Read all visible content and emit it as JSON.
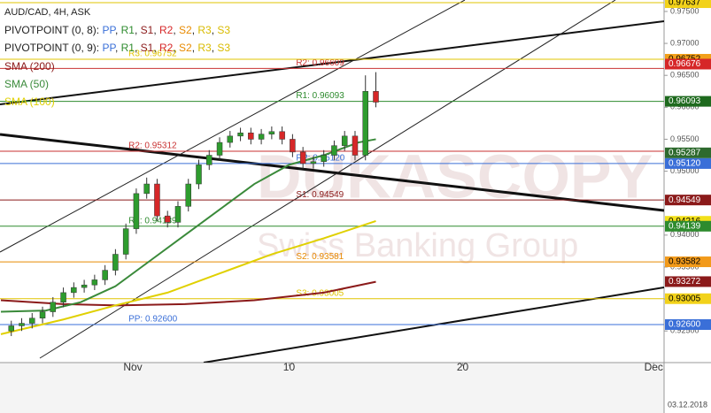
{
  "chart_data": {
    "type": "candlestick",
    "title": "AUD/CAD, 4H, ASK",
    "date_label": "03.12.2018",
    "watermark": {
      "brand": "DUKASCOPY",
      "tagline": "Swiss Banking Group"
    },
    "up_color": "#2e9c2e",
    "down_color": "#d62728",
    "x": [
      -6.0,
      -5.4,
      -4.8,
      -4.2,
      -3.6,
      -3.0,
      -2.4,
      -1.8,
      -1.2,
      -0.6,
      0.0,
      0.6,
      1.2,
      1.8,
      2.4,
      3.0,
      3.6,
      4.2,
      4.8,
      5.4,
      6.0,
      6.6,
      7.2,
      7.8,
      8.4,
      9.0,
      9.6,
      10.2,
      10.8,
      11.4,
      12.0,
      12.6,
      13.2,
      13.8,
      14.4,
      15.0
    ],
    "open": [
      0.925,
      0.9258,
      0.9262,
      0.927,
      0.928,
      0.9295,
      0.931,
      0.9318,
      0.9322,
      0.933,
      0.9345,
      0.937,
      0.941,
      0.9465,
      0.948,
      0.943,
      0.942,
      0.9445,
      0.948,
      0.951,
      0.9525,
      0.9545,
      0.9555,
      0.956,
      0.955,
      0.9558,
      0.9562,
      0.955,
      0.953,
      0.9512,
      0.9515,
      0.9525,
      0.954,
      0.9555,
      0.9525,
      0.9625
    ],
    "high": [
      0.9266,
      0.927,
      0.9278,
      0.9288,
      0.9303,
      0.9318,
      0.9326,
      0.933,
      0.9338,
      0.9353,
      0.9378,
      0.9418,
      0.9473,
      0.949,
      0.9488,
      0.9438,
      0.9453,
      0.9488,
      0.9518,
      0.9533,
      0.9553,
      0.9563,
      0.9568,
      0.9568,
      0.9566,
      0.957,
      0.957,
      0.9558,
      0.9538,
      0.9523,
      0.9533,
      0.9548,
      0.9563,
      0.9563,
      0.965,
      0.9655
    ],
    "low": [
      0.9242,
      0.925,
      0.9254,
      0.9262,
      0.9272,
      0.9287,
      0.9302,
      0.931,
      0.9314,
      0.9322,
      0.9337,
      0.9362,
      0.9402,
      0.9457,
      0.9422,
      0.9412,
      0.9412,
      0.9437,
      0.9472,
      0.9502,
      0.9517,
      0.9537,
      0.9547,
      0.9542,
      0.9542,
      0.955,
      0.9542,
      0.9522,
      0.9504,
      0.9504,
      0.9507,
      0.9517,
      0.9532,
      0.9517,
      0.9517,
      0.96
    ],
    "close": [
      0.9258,
      0.9262,
      0.927,
      0.928,
      0.9295,
      0.931,
      0.9318,
      0.9322,
      0.933,
      0.9345,
      0.937,
      0.941,
      0.9465,
      0.948,
      0.943,
      0.942,
      0.9445,
      0.948,
      0.951,
      0.9525,
      0.9545,
      0.9555,
      0.956,
      0.955,
      0.9558,
      0.9562,
      0.955,
      0.953,
      0.9512,
      0.9515,
      0.9525,
      0.954,
      0.9555,
      0.9525,
      0.9625,
      0.9608
    ],
    "xlim": [
      -6.65,
      31.6
    ],
    "ylim": [
      0.92005,
      0.97679
    ],
    "xticks": [
      {
        "value": 1,
        "label": "Nov"
      },
      10,
      20,
      {
        "value": 31,
        "label": "Dec"
      }
    ],
    "yticks": [
      {
        "value": 0.975,
        "label": "0.97500"
      },
      {
        "value": 0.97,
        "label": "0.97000"
      },
      {
        "value": 0.965,
        "label": "0.96500"
      },
      {
        "value": 0.96,
        "label": "0.96000"
      },
      {
        "value": 0.955,
        "label": "0.95500"
      },
      {
        "value": 0.95,
        "label": "0.95000"
      },
      {
        "value": 0.945,
        "label": "0.94500"
      },
      {
        "value": 0.94,
        "label": "0.94000"
      },
      {
        "value": 0.935,
        "label": "0.93500"
      },
      {
        "value": 0.93,
        "label": "0.93000"
      },
      {
        "value": 0.925,
        "label": "0.92500"
      }
    ],
    "pivots": [
      {
        "name": "PIVOTPOINT (0, 8):",
        "separator": ", ",
        "start": 10.4,
        "items": [
          {
            "name": "PP",
            "color": "#3a6fd8"
          },
          {
            "name": "R1",
            "color": "#2e8b2e"
          },
          {
            "name": "S1",
            "color": "#8b1a1a"
          },
          {
            "name": "R2",
            "color": "#d62728"
          },
          {
            "name": "S2",
            "color": "#e88a00"
          },
          {
            "name": "R3",
            "color": "#d9bb00"
          },
          {
            "name": "S3",
            "color": "#d9bb00"
          }
        ],
        "levels": [
          {
            "label": "R3: 0.97637",
            "value": 0.97637,
            "color": "#e0c400"
          },
          {
            "label": "R2: 0.96609",
            "value": 0.96609,
            "color": "#c83232"
          },
          {
            "label": "R1: 0.96093",
            "value": 0.96093,
            "color": "#2e8b2e"
          },
          {
            "label": "PP: 0.95120",
            "value": 0.9512,
            "color": "#3a6fd8"
          },
          {
            "label": "S1: 0.94549",
            "value": 0.94549,
            "color": "#8b1a1a"
          },
          {
            "label": "S2: 0.93581",
            "value": 0.93581,
            "color": "#e88a00"
          },
          {
            "label": "S3: 0.93005",
            "value": 0.93005,
            "color": "#e0c400"
          }
        ]
      },
      {
        "name": "PIVOTPOINT (0, 9):",
        "separator": ", ",
        "start": 0.75,
        "items": [
          {
            "name": "PP",
            "color": "#3a6fd8"
          },
          {
            "name": "R1",
            "color": "#2e8b2e"
          },
          {
            "name": "S1",
            "color": "#8b1a1a"
          },
          {
            "name": "R2",
            "color": "#d62728"
          },
          {
            "name": "S2",
            "color": "#e88a00"
          },
          {
            "name": "R3",
            "color": "#d9bb00"
          },
          {
            "name": "S3",
            "color": "#d9bb00"
          }
        ],
        "levels": [
          {
            "label": "R3: 0.96752",
            "value": 0.96752,
            "color": "#e0c400"
          },
          {
            "label": "R2: 0.95312",
            "value": 0.95312,
            "color": "#c83232"
          },
          {
            "label": "R1: 0.94139",
            "value": 0.94139,
            "color": "#2e8b2e"
          },
          {
            "label": "PP: 0.92600",
            "value": 0.926,
            "color": "#3a6fd8"
          }
        ]
      }
    ],
    "indicators": [
      {
        "name": "SMA (200)",
        "color": "#8b1a1a",
        "x": [
          -6.6,
          -3,
          0,
          4,
          8,
          12,
          15
        ],
        "values": [
          0.9298,
          0.9292,
          0.929,
          0.9292,
          0.9298,
          0.931,
          0.9327
        ]
      },
      {
        "name": "SMA (50)",
        "color": "#3a8a3a",
        "x": [
          -6.6,
          -4,
          -2,
          0,
          2,
          4,
          6,
          8,
          10,
          12,
          14,
          15
        ],
        "values": [
          0.928,
          0.9282,
          0.9295,
          0.932,
          0.936,
          0.94,
          0.944,
          0.948,
          0.951,
          0.9525,
          0.9545,
          0.955
        ]
      },
      {
        "name": "SMA (100)",
        "color": "#e0d000",
        "x": [
          -6.6,
          -3,
          0,
          3,
          6,
          9,
          12,
          15
        ],
        "values": [
          0.9245,
          0.9268,
          0.929,
          0.931,
          0.934,
          0.937,
          0.9395,
          0.9422
        ]
      }
    ],
    "price_tags": [
      {
        "label": "0.97637",
        "value": 0.97637,
        "color": "#f2d21a",
        "text_color": "#000000"
      },
      {
        "label": "0.96752",
        "value": 0.96752,
        "color": "#f2a01a",
        "text_color": "#000000"
      },
      {
        "label": "0.96676",
        "value": 0.96676,
        "color": "#d62728",
        "text_color": "#ffffff"
      },
      {
        "label": "0.96093",
        "value": 0.96093,
        "color": "#1e6a1e",
        "text_color": "#ffffff"
      },
      {
        "label": "0.95287",
        "value": 0.95287,
        "color": "#2e6a2e",
        "text_color": "#ffffff"
      },
      {
        "label": "0.95120",
        "value": 0.9512,
        "color": "#3a6fd8",
        "text_color": "#ffffff"
      },
      {
        "label": "0.94549",
        "value": 0.94549,
        "color": "#8b1a1a",
        "text_color": "#ffffff"
      },
      {
        "label": "0.94216",
        "value": 0.94216,
        "color": "#f2e01a",
        "text_color": "#000000"
      },
      {
        "label": "0.94139",
        "value": 0.94139,
        "color": "#2e8b2e",
        "text_color": "#ffffff"
      },
      {
        "label": "0.93582",
        "value": 0.93582,
        "color": "#f29a1a",
        "text_color": "#000000"
      },
      {
        "label": "0.93272",
        "value": 0.93272,
        "color": "#8b1a1a",
        "text_color": "#ffffff"
      },
      {
        "label": "0.93005",
        "value": 0.93005,
        "color": "#f2d21a",
        "text_color": "#000000"
      },
      {
        "label": "0.92600",
        "value": 0.926,
        "color": "#3a6fd8",
        "text_color": "#ffffff"
      }
    ]
  }
}
